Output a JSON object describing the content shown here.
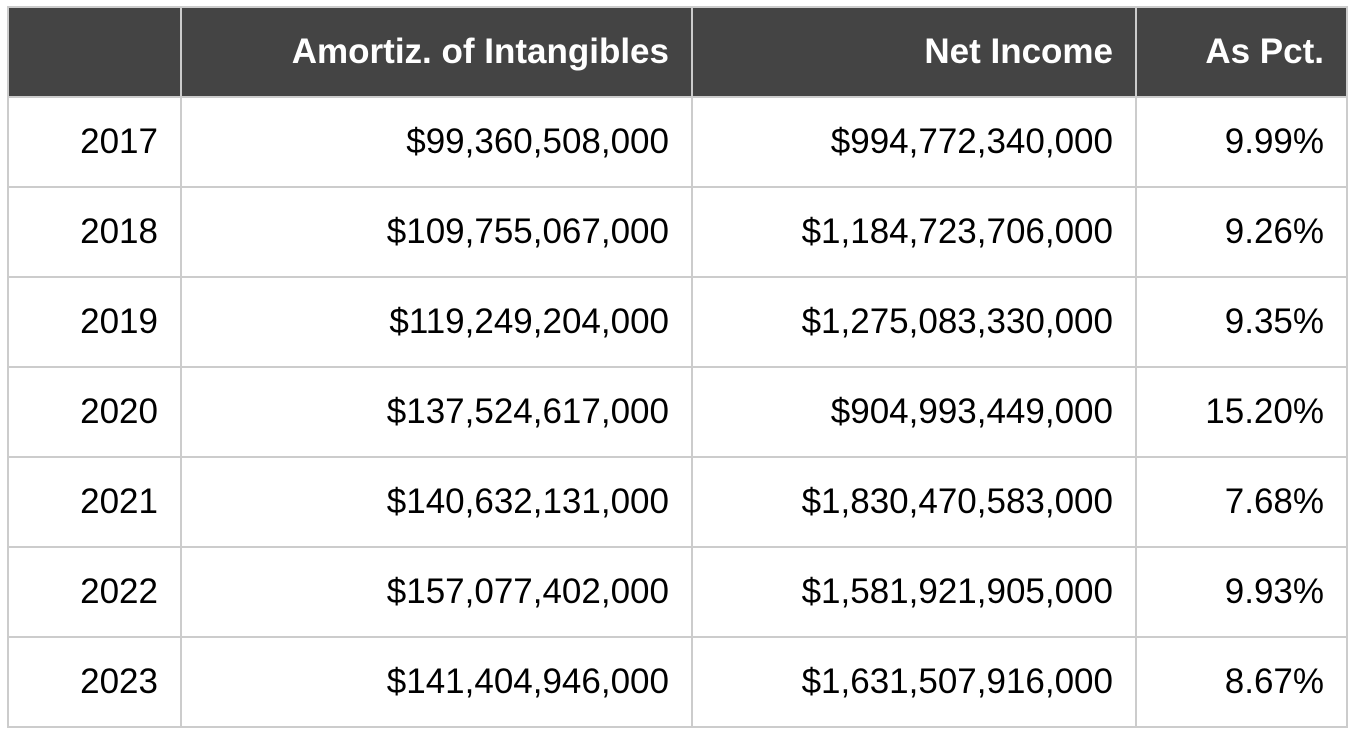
{
  "table": {
    "headers": [
      "",
      "Amortiz. of Intangibles",
      "Net Income",
      "As Pct."
    ],
    "rows": [
      [
        "2017",
        "$99,360,508,000",
        "$994,772,340,000",
        "9.99%"
      ],
      [
        "2018",
        "$109,755,067,000",
        "$1,184,723,706,000",
        "9.26%"
      ],
      [
        "2019",
        "$119,249,204,000",
        "$1,275,083,330,000",
        "9.35%"
      ],
      [
        "2020",
        "$137,524,617,000",
        "$904,993,449,000",
        "15.20%"
      ],
      [
        "2021",
        "$140,632,131,000",
        "$1,830,470,583,000",
        "7.68%"
      ],
      [
        "2022",
        "$157,077,402,000",
        "$1,581,921,905,000",
        "9.93%"
      ],
      [
        "2023",
        "$141,404,946,000",
        "$1,631,507,916,000",
        "8.67%"
      ]
    ]
  },
  "colors": {
    "header_background": "#444444",
    "header_text": "#ffffff",
    "grid_lines": "#cccccc",
    "body_text": "#000000"
  }
}
